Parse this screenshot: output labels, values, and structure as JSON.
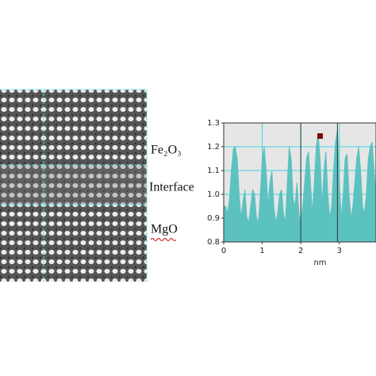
{
  "chart_data": {
    "type": "area",
    "annotations": [
      "Fe₂O₃",
      "Interface",
      "MgO"
    ],
    "xlabel": "nm",
    "x": [
      0,
      0.05,
      0.1,
      0.15,
      0.2,
      0.25,
      0.3,
      0.35,
      0.4,
      0.45,
      0.5,
      0.55,
      0.6,
      0.65,
      0.7,
      0.75,
      0.8,
      0.85,
      0.9,
      0.95,
      1.0,
      1.05,
      1.1,
      1.15,
      1.2,
      1.25,
      1.3,
      1.35,
      1.4,
      1.45,
      1.5,
      1.55,
      1.6,
      1.65,
      1.7,
      1.75,
      1.8,
      1.85,
      1.9,
      1.95,
      2.0,
      2.05,
      2.1,
      2.15,
      2.2,
      2.25,
      2.3,
      2.35,
      2.4,
      2.45,
      2.5,
      2.55,
      2.6,
      2.65,
      2.7,
      2.75,
      2.8,
      2.85,
      2.9,
      2.95,
      3.0,
      3.05,
      3.1,
      3.15,
      3.2,
      3.25,
      3.3,
      3.35,
      3.4,
      3.45,
      3.5,
      3.55,
      3.6,
      3.65,
      3.7,
      3.75,
      3.8,
      3.85,
      3.9,
      3.95
    ],
    "values": [
      0.95,
      0.95,
      0.92,
      0.98,
      1.1,
      1.19,
      1.2,
      1.15,
      1.0,
      0.9,
      0.97,
      1.02,
      0.9,
      0.88,
      0.95,
      1.02,
      1.0,
      0.9,
      0.88,
      1.0,
      1.15,
      1.2,
      1.1,
      0.95,
      1.05,
      1.1,
      0.95,
      0.88,
      0.92,
      1.0,
      1.02,
      0.92,
      0.88,
      1.05,
      1.2,
      1.15,
      0.98,
      0.95,
      1.05,
      0.92,
      0.88,
      0.95,
      1.05,
      1.15,
      1.18,
      1.05,
      0.92,
      1.05,
      1.2,
      1.25,
      1.15,
      0.95,
      1.1,
      1.18,
      1.0,
      0.9,
      0.95,
      1.1,
      1.22,
      1.27,
      1.05,
      0.9,
      1.0,
      1.15,
      1.17,
      1.0,
      0.9,
      0.95,
      1.05,
      1.15,
      1.2,
      1.1,
      0.95,
      0.92,
      1.0,
      1.15,
      1.2,
      1.22,
      1.1,
      1.0
    ],
    "color": "#5cc2c0",
    "xlim": [
      0,
      3.95
    ],
    "ylim": [
      0.8,
      1.3
    ],
    "xticks": [
      0,
      1,
      2,
      3
    ],
    "yticks": [
      0.8,
      0.9,
      {
        "value": 1.0,
        "label": "1.0"
      },
      1.1,
      1.2,
      1.3
    ],
    "grid": true,
    "highlight_xrange": [
      2.0,
      2.95
    ],
    "marker": {
      "x": 2.5,
      "y": 1.245,
      "color": "#7a0a0a"
    }
  }
}
